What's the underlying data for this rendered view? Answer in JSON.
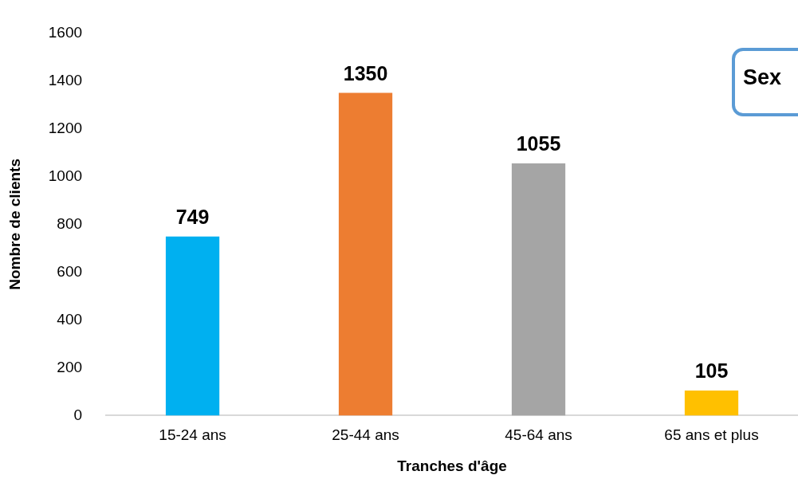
{
  "chart_data": {
    "type": "bar",
    "xlabel": "Tranches d'âge",
    "ylabel": "Nombre de clients",
    "categories": [
      "15-24 ans",
      "25-44 ans",
      "45-64 ans",
      "65 ans et plus"
    ],
    "values": [
      749,
      1350,
      1055,
      105
    ],
    "colors": [
      "#00b0f0",
      "#ed7d31",
      "#a5a5a5",
      "#ffc000"
    ],
    "ylim": [
      0,
      1600
    ],
    "yticks": [
      0,
      200,
      400,
      600,
      800,
      1000,
      1200,
      1400,
      1600
    ],
    "grid": false,
    "legend": false,
    "data_labels": true,
    "annotations": [
      "Sex"
    ]
  }
}
